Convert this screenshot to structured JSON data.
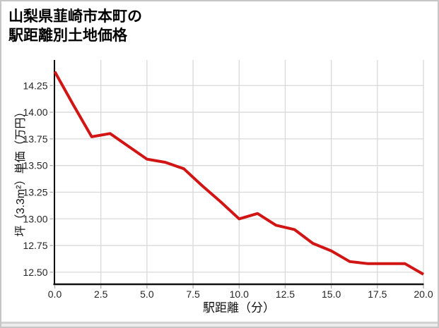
{
  "title": {
    "line1": "山梨県韮崎市本町の",
    "line2": "駅距離別土地価格"
  },
  "chart_data": {
    "type": "line",
    "title": "山梨県韮崎市本町の駅距離別土地価格",
    "xlabel": "駅距離（分）",
    "ylabel": "坪（3.3m²）単価（万円）",
    "x": [
      0,
      1,
      2,
      3,
      4,
      5,
      6,
      7,
      8,
      9,
      10,
      11,
      12,
      13,
      14,
      15,
      16,
      17,
      18,
      19,
      20
    ],
    "values": [
      14.38,
      14.07,
      13.77,
      13.8,
      13.68,
      13.56,
      13.53,
      13.47,
      13.31,
      13.16,
      13.0,
      13.05,
      12.94,
      12.9,
      12.77,
      12.7,
      12.6,
      12.58,
      12.58,
      12.58,
      12.48
    ],
    "xlim": [
      0,
      20
    ],
    "ylim": [
      12.39,
      14.49
    ],
    "x_ticks": [
      0,
      2.5,
      5,
      7.5,
      10,
      12.5,
      15,
      17.5,
      20
    ],
    "x_tick_labels": [
      "0.0",
      "2.5",
      "5.0",
      "7.5",
      "10.0",
      "12.5",
      "15.0",
      "17.5",
      "20.0"
    ],
    "y_ticks": [
      12.5,
      12.75,
      13.0,
      13.25,
      13.5,
      13.75,
      14.0,
      14.25
    ],
    "y_tick_labels": [
      "12.50",
      "12.75",
      "13.00",
      "13.25",
      "13.50",
      "13.75",
      "14.00",
      "14.25"
    ],
    "grid": true,
    "legend": "none",
    "line_color": "#d11414",
    "grid_color": "#d9d9d9",
    "tick_color": "#aeaeae",
    "spine_color": "#111111",
    "tick_label_color": "#262626"
  }
}
